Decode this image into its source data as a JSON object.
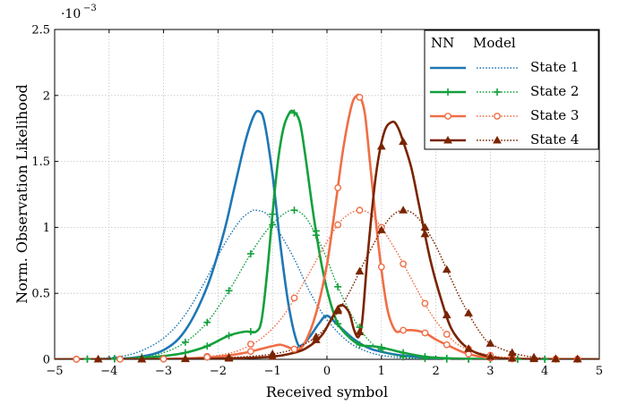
{
  "chart_data": {
    "type": "line",
    "xlabel": "Received symbol",
    "ylabel": "Norm. Observation Likelihood",
    "y_scale_label": "·10",
    "y_scale_exponent": "−3",
    "xlim": [
      -5,
      5
    ],
    "ylim": [
      0,
      2.5
    ],
    "x_ticks": [
      "−5",
      "−4",
      "−3",
      "−2",
      "−1",
      "0",
      "1",
      "2",
      "3",
      "4",
      "5"
    ],
    "y_ticks": [
      "0",
      "0.5",
      "1",
      "1.5",
      "2",
      "2.5"
    ],
    "grid": true,
    "legend_placement": "top-right",
    "legend": {
      "col_nn": "NN",
      "col_model": "Model",
      "rows": [
        "State 1",
        "State 2",
        "State 3",
        "State 4"
      ]
    },
    "states": [
      {
        "name": "State 1",
        "color": "#1f77b4",
        "marker": "none",
        "nn": {
          "x": [
            -5,
            -4,
            -3.5,
            -3,
            -2.6,
            -2.2,
            -1.9,
            -1.7,
            -1.5,
            -1.35,
            -1.25,
            -1.15,
            -1.0,
            -0.85,
            -0.7,
            -0.55,
            -0.45,
            -0.3,
            -0.15,
            0,
            0.2,
            0.5,
            0.8,
            1.2,
            1.6,
            2,
            3,
            5
          ],
          "y": [
            0,
            0.003,
            0.015,
            0.07,
            0.22,
            0.55,
            0.95,
            1.3,
            1.65,
            1.84,
            1.88,
            1.8,
            1.4,
            0.85,
            0.4,
            0.13,
            0.11,
            0.18,
            0.27,
            0.33,
            0.26,
            0.15,
            0.08,
            0.04,
            0.02,
            0.008,
            0.001,
            0
          ]
        },
        "model": {
          "x": [
            -5,
            -4.5,
            -4,
            -3.5,
            -3,
            -2.6,
            -2.2,
            -1.9,
            -1.6,
            -1.4,
            -1.3,
            -1.1,
            -0.9,
            -0.6,
            -0.3,
            0,
            0.4,
            0.8,
            1.2,
            1.6,
            2,
            2.5,
            3,
            5
          ],
          "y": [
            0.001,
            0.004,
            0.012,
            0.05,
            0.16,
            0.34,
            0.62,
            0.86,
            1.05,
            1.12,
            1.13,
            1.1,
            0.98,
            0.76,
            0.5,
            0.3,
            0.13,
            0.05,
            0.018,
            0.006,
            0.002,
            0.001,
            0,
            0
          ]
        }
      },
      {
        "name": "State 2",
        "color": "#12a03c",
        "marker": "plus",
        "nn": {
          "x": [
            -5,
            -4,
            -3.5,
            -3,
            -2.6,
            -2.2,
            -1.8,
            -1.5,
            -1.3,
            -1.2,
            -1.1,
            -1.0,
            -0.9,
            -0.8,
            -0.7,
            -0.62,
            -0.5,
            -0.4,
            -0.25,
            -0.1,
            0.05,
            0.2,
            0.4,
            0.6,
            0.8,
            1.0,
            1.4,
            1.8,
            2.2,
            3,
            5
          ],
          "y": [
            0,
            0.002,
            0.008,
            0.025,
            0.05,
            0.1,
            0.18,
            0.21,
            0.21,
            0.3,
            0.65,
            1.1,
            1.5,
            1.75,
            1.86,
            1.88,
            1.8,
            1.55,
            1.1,
            0.72,
            0.45,
            0.27,
            0.17,
            0.11,
            0.1,
            0.09,
            0.05,
            0.02,
            0.008,
            0.002,
            0
          ]
        },
        "model": {
          "x": [
            -5,
            -4.4,
            -3.9,
            -3.4,
            -3,
            -2.6,
            -2.2,
            -1.8,
            -1.4,
            -1.1,
            -0.8,
            -0.6,
            -0.4,
            -0.2,
            0,
            0.2,
            0.5,
            0.8,
            1.1,
            1.4,
            1.8,
            2.2,
            2.6,
            3,
            3.5,
            4,
            5
          ],
          "y": [
            0,
            0.002,
            0.006,
            0.018,
            0.05,
            0.13,
            0.28,
            0.52,
            0.8,
            0.98,
            1.1,
            1.13,
            1.08,
            0.94,
            0.76,
            0.55,
            0.3,
            0.13,
            0.05,
            0.018,
            0.006,
            0.002,
            0.001,
            0,
            0,
            0,
            0
          ]
        },
        "marker_x": [
          -4.4,
          -3.9,
          -3.4,
          -2.6,
          -2.2,
          -1.8,
          -1.4,
          -1.0,
          -0.6,
          -0.2,
          0.2,
          0.6,
          1.0,
          1.4,
          1.8,
          2.2,
          2.6,
          3.0,
          3.5,
          4.0
        ]
      },
      {
        "name": "State 3",
        "color": "#f06e46",
        "marker": "circle",
        "nn": {
          "x": [
            -5,
            -3,
            -2,
            -1.5,
            -1.2,
            -1.0,
            -0.85,
            -0.7,
            -0.55,
            -0.4,
            -0.2,
            0,
            0.15,
            0.3,
            0.45,
            0.55,
            0.62,
            0.7,
            0.8,
            0.95,
            1.1,
            1.25,
            1.4,
            1.6,
            1.8,
            2.0,
            2.3,
            2.6,
            3,
            3.5,
            5
          ],
          "y": [
            0,
            0.002,
            0.02,
            0.05,
            0.08,
            0.1,
            0.11,
            0.09,
            0.07,
            0.13,
            0.35,
            0.72,
            1.15,
            1.6,
            1.92,
            2.0,
            1.98,
            1.85,
            1.45,
            0.85,
            0.4,
            0.22,
            0.22,
            0.22,
            0.2,
            0.15,
            0.09,
            0.04,
            0.01,
            0.002,
            0
          ]
        },
        "model": {
          "x": [
            -5,
            -4,
            -3,
            -2.5,
            -2,
            -1.6,
            -1.2,
            -0.8,
            -0.4,
            -0.1,
            0.2,
            0.4,
            0.6,
            0.8,
            1.0,
            1.3,
            1.6,
            1.9,
            2.2,
            2.5,
            3,
            3.5,
            4,
            5
          ],
          "y": [
            0,
            0.001,
            0.004,
            0.01,
            0.03,
            0.07,
            0.16,
            0.33,
            0.6,
            0.82,
            1.02,
            1.1,
            1.13,
            1.1,
            1.0,
            0.8,
            0.57,
            0.35,
            0.19,
            0.09,
            0.03,
            0.008,
            0.002,
            0
          ]
        },
        "marker_x": [
          -4.6,
          -3.8,
          -3.0,
          -2.2,
          -1.4,
          -0.6,
          0.2,
          0.6,
          1.0,
          1.4,
          1.8,
          2.2,
          2.6,
          3.0,
          3.4,
          4.2,
          4.6
        ]
      },
      {
        "name": "State 4",
        "color": "#7a2400",
        "marker": "triangle",
        "nn": {
          "x": [
            -5,
            -3,
            -2,
            -1.5,
            -1.0,
            -0.7,
            -0.4,
            -0.1,
            0.1,
            0.25,
            0.4,
            0.5,
            0.58,
            0.65,
            0.75,
            0.9,
            1.05,
            1.2,
            1.3,
            1.4,
            1.55,
            1.7,
            1.9,
            2.1,
            2.3,
            2.6,
            3.0,
            3.5,
            5
          ],
          "y": [
            0,
            0.001,
            0.005,
            0.01,
            0.02,
            0.04,
            0.08,
            0.18,
            0.32,
            0.41,
            0.36,
            0.22,
            0.17,
            0.3,
            0.8,
            1.4,
            1.72,
            1.8,
            1.76,
            1.65,
            1.45,
            1.15,
            0.75,
            0.45,
            0.22,
            0.08,
            0.02,
            0.004,
            0
          ]
        },
        "model": {
          "x": [
            -5,
            -4,
            -3,
            -2.5,
            -2,
            -1.5,
            -1.0,
            -0.6,
            -0.2,
            0.1,
            0.4,
            0.7,
            1.0,
            1.2,
            1.4,
            1.6,
            1.8,
            2.0,
            2.2,
            2.5,
            2.8,
            3.0,
            3.4,
            3.8,
            4.2,
            5
          ],
          "y": [
            0,
            0,
            0.001,
            0.004,
            0.01,
            0.02,
            0.04,
            0.08,
            0.17,
            0.3,
            0.5,
            0.75,
            0.98,
            1.09,
            1.13,
            1.1,
            1.0,
            0.86,
            0.68,
            0.42,
            0.21,
            0.12,
            0.05,
            0.015,
            0.004,
            0
          ]
        },
        "marker_x": [
          -4.2,
          -3.4,
          -2.6,
          -1.8,
          -1.0,
          -0.2,
          0.2,
          0.6,
          1.0,
          1.4,
          1.8,
          2.2,
          2.6,
          3.0,
          3.4,
          3.8,
          4.2,
          4.6
        ]
      }
    ]
  }
}
